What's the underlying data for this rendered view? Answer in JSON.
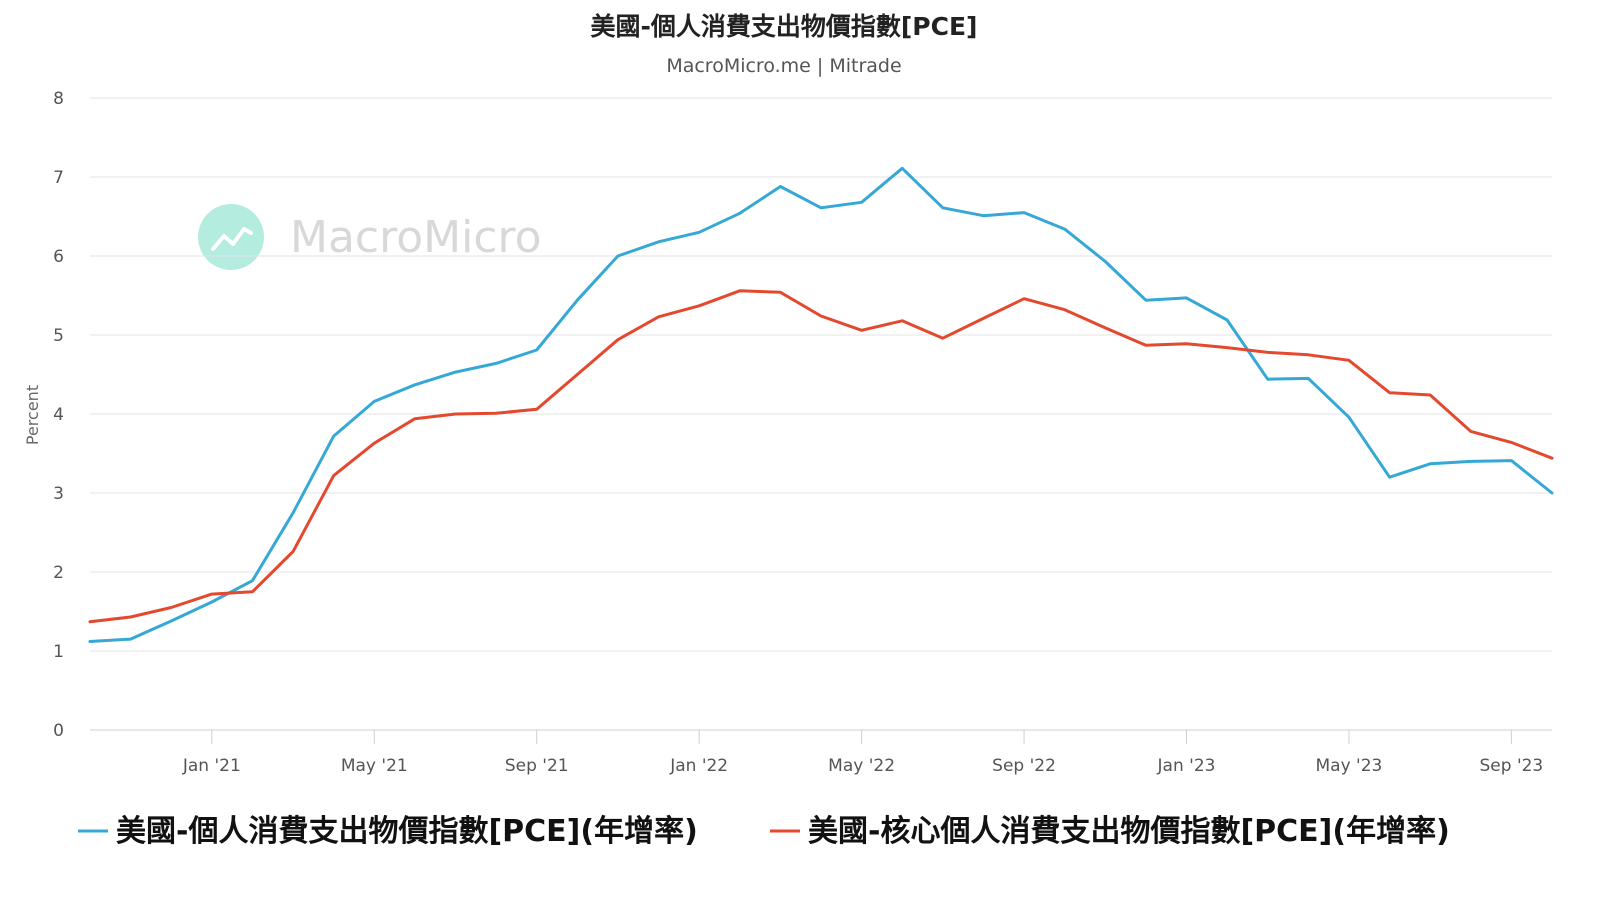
{
  "chart_data": {
    "type": "line",
    "title": "美國-個人消費支出物價指數[PCE]",
    "subtitle": "MacroMicro.me | Mitrade",
    "watermark": "MacroMicro",
    "ylabel": "Percent",
    "ylim": [
      0,
      8
    ],
    "yticks": [
      "0",
      "1",
      "2",
      "3",
      "4",
      "5",
      "6",
      "7",
      "8"
    ],
    "xlim": [
      "2020-10",
      "2023-10"
    ],
    "xticks": [
      {
        "label": "Jan '21",
        "date": "2021-01"
      },
      {
        "label": "May '21",
        "date": "2021-05"
      },
      {
        "label": "Sep '21",
        "date": "2021-09"
      },
      {
        "label": "Jan '22",
        "date": "2022-01"
      },
      {
        "label": "May '22",
        "date": "2022-05"
      },
      {
        "label": "Sep '22",
        "date": "2022-09"
      },
      {
        "label": "Jan '23",
        "date": "2023-01"
      },
      {
        "label": "May '23",
        "date": "2023-05"
      },
      {
        "label": "Sep '23",
        "date": "2023-09"
      }
    ],
    "grid": true,
    "legend": "bottom",
    "x": [
      "2020-10",
      "2020-11",
      "2020-12",
      "2021-01",
      "2021-02",
      "2021-03",
      "2021-04",
      "2021-05",
      "2021-06",
      "2021-07",
      "2021-08",
      "2021-09",
      "2021-10",
      "2021-11",
      "2021-12",
      "2022-01",
      "2022-02",
      "2022-03",
      "2022-04",
      "2022-05",
      "2022-06",
      "2022-07",
      "2022-08",
      "2022-09",
      "2022-10",
      "2022-11",
      "2022-12",
      "2023-01",
      "2023-02",
      "2023-03",
      "2023-04",
      "2023-05",
      "2023-06",
      "2023-07",
      "2023-08",
      "2023-09",
      "2023-10"
    ],
    "series": [
      {
        "name": "美國-個人消費支出物價指數[PCE](年增率)",
        "color": "#35a8d6",
        "values": [
          1.12,
          1.15,
          1.38,
          1.62,
          1.89,
          2.75,
          3.72,
          4.16,
          4.37,
          4.53,
          4.64,
          4.81,
          5.44,
          6.0,
          6.18,
          6.3,
          6.54,
          6.88,
          6.61,
          6.68,
          7.11,
          6.61,
          6.51,
          6.55,
          6.34,
          5.93,
          5.44,
          5.47,
          5.19,
          4.44,
          4.45,
          3.96,
          3.2,
          3.37,
          3.4,
          3.41,
          3.0
        ]
      },
      {
        "name": "美國-核心個人消費支出物價指數[PCE](年增率)",
        "color": "#e3492e",
        "values": [
          1.37,
          1.43,
          1.55,
          1.72,
          1.75,
          2.26,
          3.22,
          3.63,
          3.94,
          4.0,
          4.01,
          4.06,
          4.5,
          4.94,
          5.23,
          5.37,
          5.56,
          5.54,
          5.24,
          5.06,
          5.18,
          4.96,
          5.21,
          5.46,
          5.32,
          5.09,
          4.87,
          4.89,
          4.84,
          4.78,
          4.75,
          4.68,
          4.27,
          4.24,
          3.78,
          3.64,
          3.44
        ]
      }
    ]
  },
  "colors": {
    "watermark_badge": "#b4ece0",
    "watermark_text": "#d8d8d8",
    "grid": "#e3e3e3",
    "axis_text": "#555555"
  }
}
